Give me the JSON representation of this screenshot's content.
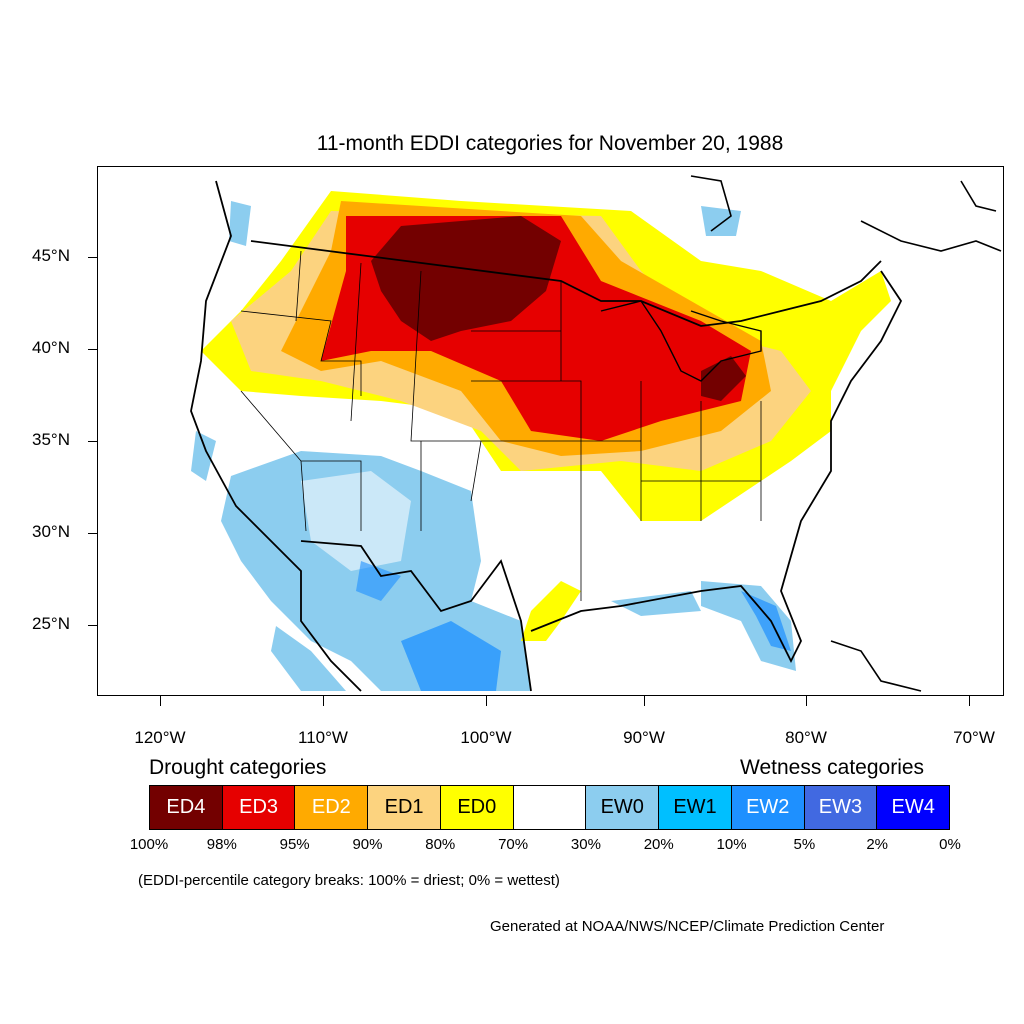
{
  "title": "11-month EDDI categories for November 20, 1988",
  "lat_labels": [
    "45°N",
    "40°N",
    "35°N",
    "30°N",
    "25°N"
  ],
  "lon_labels": [
    "120°W",
    "110°W",
    "100°W",
    "90°W",
    "80°W",
    "70°W"
  ],
  "legend": {
    "drought_title": "Drought categories",
    "wetness_title": "Wetness categories",
    "categories": [
      {
        "label": "ED4",
        "color": "#730000",
        "text_color": "#ffffff"
      },
      {
        "label": "ED3",
        "color": "#e60000",
        "text_color": "#ffffff"
      },
      {
        "label": "ED2",
        "color": "#ffaa00",
        "text_color": "#ffffff"
      },
      {
        "label": "ED1",
        "color": "#fcd37f",
        "text_color": "#000000"
      },
      {
        "label": "ED0",
        "color": "#ffff00",
        "text_color": "#000000"
      },
      {
        "label": "",
        "color": "#ffffff",
        "text_color": "#000000"
      },
      {
        "label": "EW0",
        "color": "#8ccdef",
        "text_color": "#000000"
      },
      {
        "label": "EW1",
        "color": "#00bfff",
        "text_color": "#000000"
      },
      {
        "label": "EW2",
        "color": "#1e90ff",
        "text_color": "#ffffff"
      },
      {
        "label": "EW3",
        "color": "#4169e1",
        "text_color": "#ffffff"
      },
      {
        "label": "EW4",
        "color": "#0000ff",
        "text_color": "#ffffff"
      }
    ],
    "percent_breaks": [
      "100%",
      "98%",
      "95%",
      "90%",
      "80%",
      "70%",
      "30%",
      "20%",
      "10%",
      "5%",
      "2%",
      "0%"
    ]
  },
  "note": "(EDDI-percentile category breaks: 100% = driest; 0% = wettest)",
  "credit": "Generated at NOAA/NWS/NCEP/Climate Prediction Center"
}
